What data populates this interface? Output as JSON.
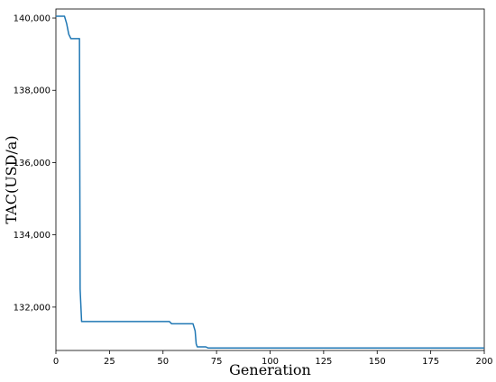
{
  "chart_data": {
    "type": "line",
    "title": "",
    "xlabel": "Generation",
    "ylabel": "TAC(USD/a)",
    "xlim": [
      0,
      200
    ],
    "ylim": [
      130800,
      140250
    ],
    "xticks": [
      0,
      25,
      50,
      75,
      100,
      125,
      150,
      175,
      200
    ],
    "xtick_labels": [
      "0",
      "25",
      "50",
      "75",
      "100",
      "125",
      "150",
      "175",
      "200"
    ],
    "yticks": [
      132000,
      134000,
      136000,
      138000,
      140000
    ],
    "ytick_labels": [
      "132,000",
      "134,000",
      "136,000",
      "138,000",
      "140,000"
    ],
    "grid": false,
    "line_color": "#1f77b4",
    "series": [
      {
        "x": [
          0,
          4,
          5,
          6,
          7,
          10,
          11,
          11.3,
          12,
          53,
          54,
          64,
          65,
          65.5,
          66,
          70,
          71,
          200
        ],
        "y": [
          140050,
          140050,
          139850,
          139550,
          139430,
          139430,
          139430,
          132500,
          131600,
          131600,
          131540,
          131540,
          131340,
          130980,
          130900,
          130900,
          130870,
          130870
        ]
      }
    ]
  }
}
